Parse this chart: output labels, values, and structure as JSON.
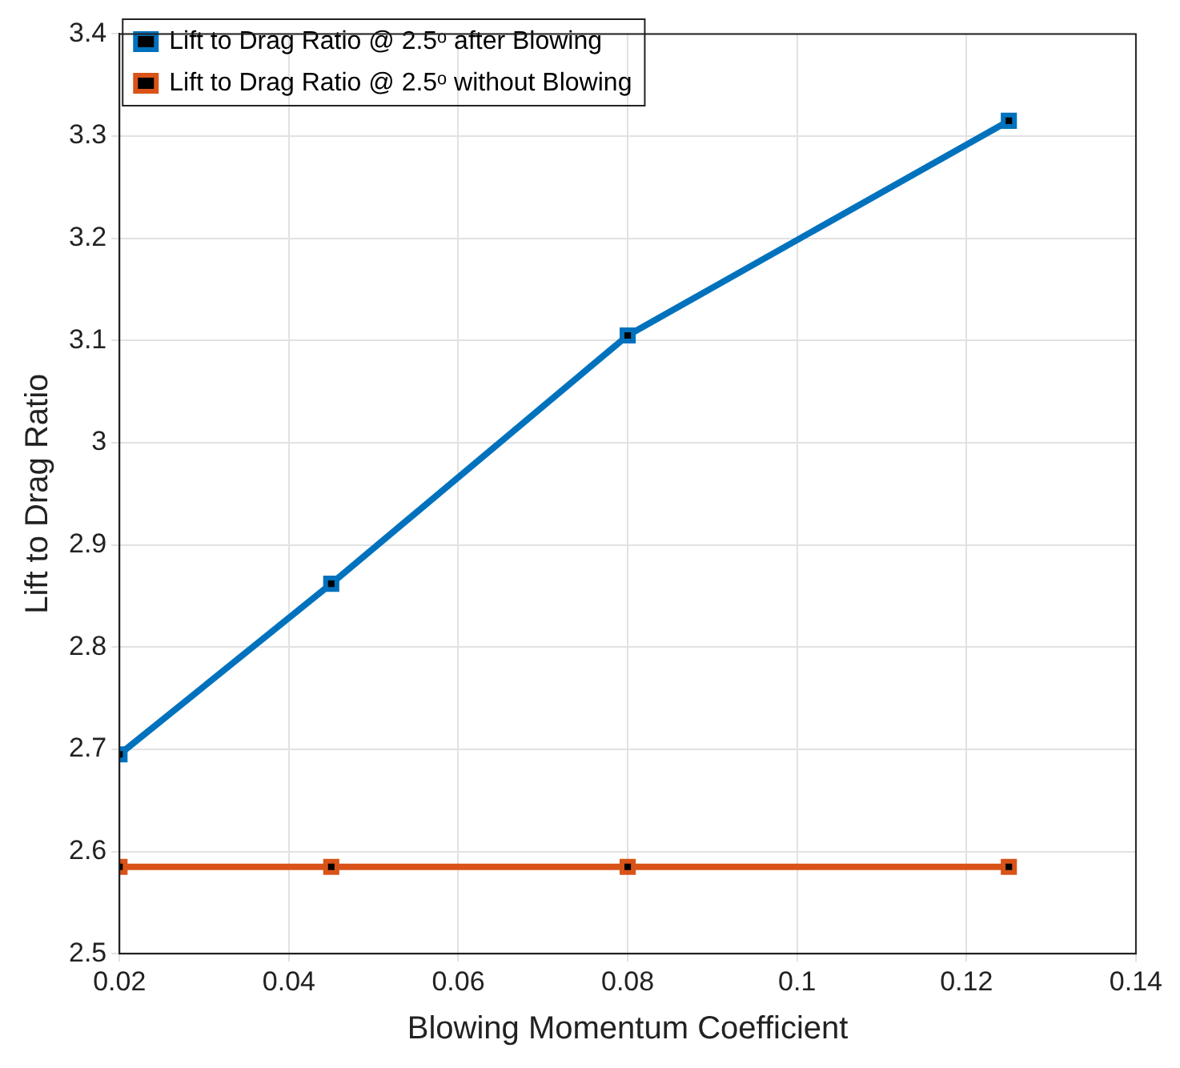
{
  "chart_data": {
    "type": "line",
    "xlabel": "Blowing Momentum Coefficient",
    "ylabel": "Lift to Drag Ratio",
    "x": [
      0.02,
      0.045,
      0.08,
      0.125
    ],
    "series": [
      {
        "name": "Lift to Drag Ratio @ 2.5ᵒ after Blowing",
        "color": "#0072bd",
        "values": [
          2.695,
          2.862,
          3.105,
          3.315
        ]
      },
      {
        "name": "Lift to Drag Ratio @ 2.5ᵒ without Blowing",
        "color": "#d95319",
        "values": [
          2.585,
          2.585,
          2.585,
          2.585
        ]
      }
    ],
    "xlim": [
      0.02,
      0.14
    ],
    "xticks": [
      0.02,
      0.04,
      0.06,
      0.08,
      0.1,
      0.12,
      0.14
    ],
    "ylim": [
      2.5,
      3.4
    ],
    "yticks": [
      2.5,
      2.6,
      2.7,
      2.8,
      2.9,
      3,
      3.1,
      3.2,
      3.3,
      3.4
    ],
    "grid": true,
    "legend": "top left",
    "marker": "square",
    "line_style": "solid"
  }
}
